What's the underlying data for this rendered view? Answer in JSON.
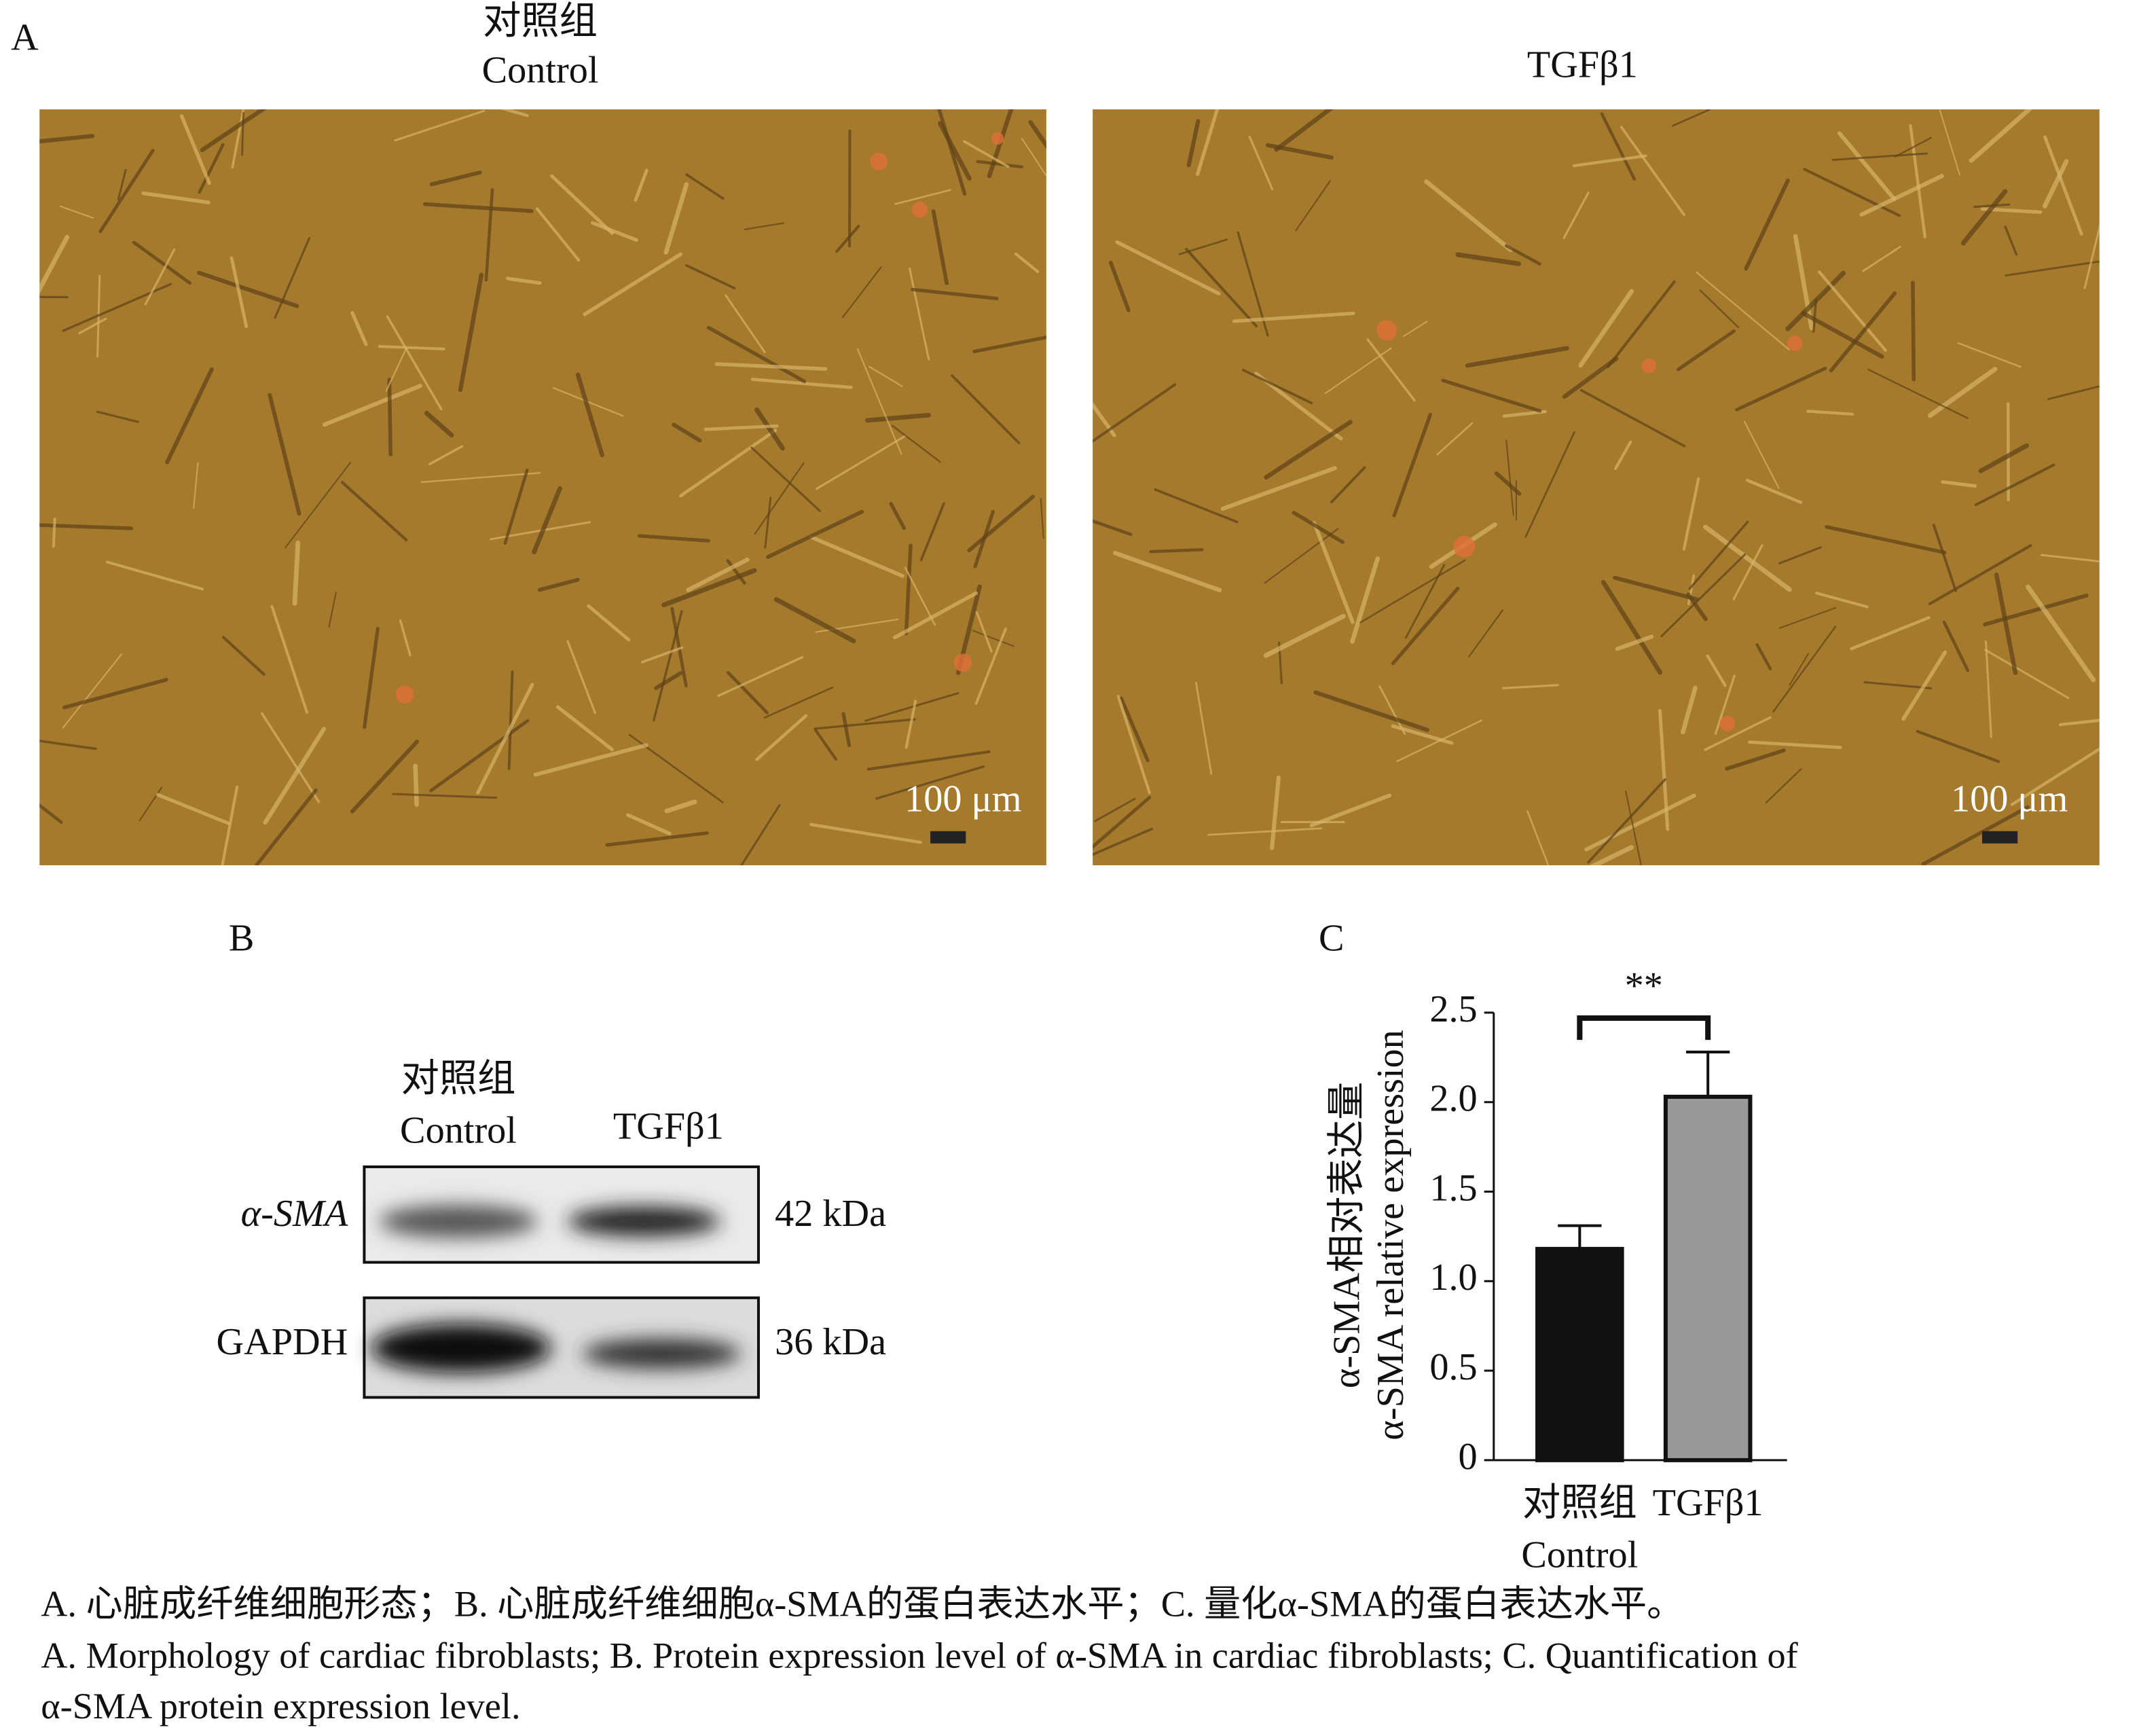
{
  "panel_a": {
    "letter": "A",
    "left_title": [
      "对照组",
      "Control"
    ],
    "right_title": "TGFβ1",
    "scale_label": "100 μm"
  },
  "panel_b": {
    "letter": "B",
    "columns": [
      [
        "对照组",
        "Control"
      ],
      [
        "TGFβ1"
      ]
    ],
    "rows": [
      {
        "label": "α-SMA",
        "size": "42 kDa"
      },
      {
        "label": "GAPDH",
        "size": "36 kDa"
      }
    ]
  },
  "chart_data": {
    "type": "bar",
    "letter": "C",
    "y_label": [
      "α-SMA相对表达量",
      "α-SMA relative expression"
    ],
    "categories": [
      [
        "对照组",
        "Control"
      ],
      [
        "TGFβ1"
      ]
    ],
    "values": [
      1.18,
      2.03
    ],
    "errors": [
      0.13,
      0.25
    ],
    "colors": [
      "#111111",
      "#999999"
    ],
    "significance": "**",
    "ylim": [
      0,
      2.5
    ],
    "yticks": [
      0,
      {
        "value": 0.5,
        "label": "0.5"
      },
      {
        "value": 1,
        "label": "1.0"
      },
      1.5,
      {
        "value": 2,
        "label": "2.0"
      },
      2.5
    ]
  },
  "caption": [
    "A. 心脏成纤维细胞形态；B. 心脏成纤维细胞α-SMA的蛋白表达水平；C. 量化α-SMA的蛋白表达水平。",
    "A. Morphology of cardiac fibroblasts; B. Protein expression level of α-SMA in cardiac fibroblasts; C. Quantification of",
    "α-SMA protein expression level."
  ]
}
